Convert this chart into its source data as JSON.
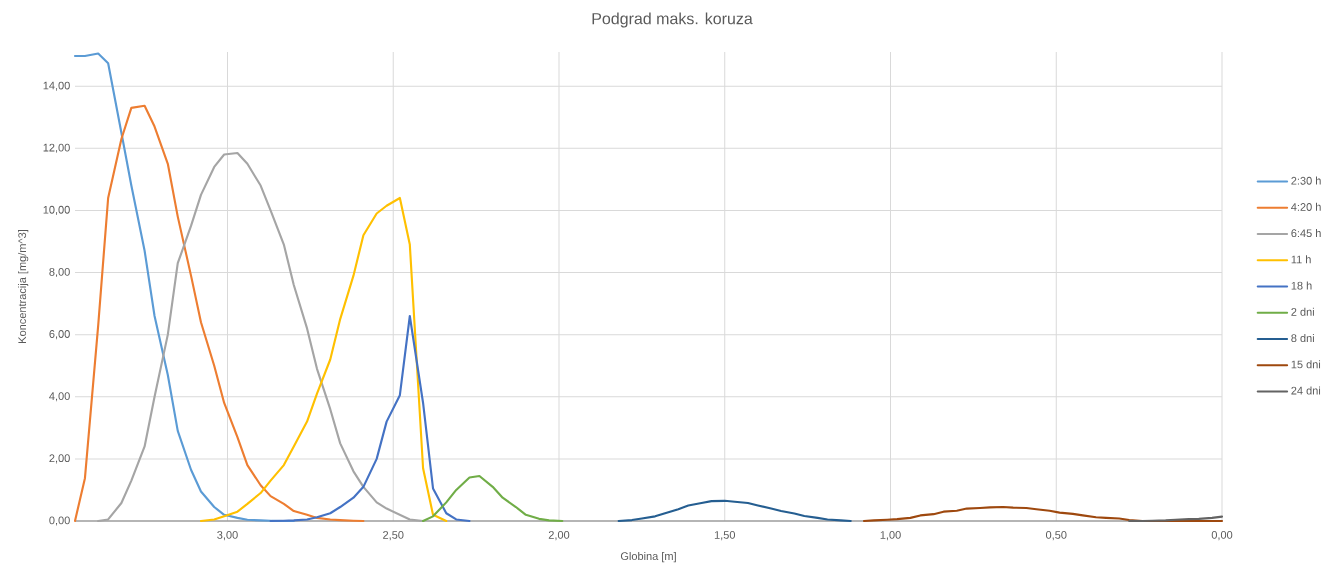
{
  "chart_data": {
    "type": "line",
    "title": "Podgrad maks. koruza",
    "xlabel": "Globina [m]",
    "ylabel": "Koncentracija [mg/m^3]",
    "xlim": [
      3.46,
      0
    ],
    "ylim": [
      0,
      15.1
    ],
    "xticks": [
      {
        "value": 3.0,
        "label": "3,00"
      },
      {
        "value": 2.5,
        "label": "2,50"
      },
      {
        "value": 2.0,
        "label": "2,00"
      },
      {
        "value": 1.5,
        "label": "1,50"
      },
      {
        "value": 1.0,
        "label": "1,00"
      },
      {
        "value": 0.5,
        "label": "0,50"
      },
      {
        "value": 0.0,
        "label": "0,00"
      }
    ],
    "yticks": [
      {
        "value": 0,
        "label": "0,00"
      },
      {
        "value": 2,
        "label": "2,00"
      },
      {
        "value": 4,
        "label": "4,00"
      },
      {
        "value": 6,
        "label": "6,00"
      },
      {
        "value": 8,
        "label": "8,00"
      },
      {
        "value": 10,
        "label": "10,00"
      },
      {
        "value": 12,
        "label": "12,00"
      },
      {
        "value": 14,
        "label": "14,00"
      }
    ],
    "grid": true,
    "legend": "right",
    "marker": "none",
    "line_style": "solid",
    "series": [
      {
        "name": "2:30 h",
        "color": "#5b9bd5",
        "x": [
          3.46,
          3.43,
          3.39,
          3.36,
          3.32,
          3.29,
          3.25,
          3.22,
          3.18,
          3.15,
          3.11,
          3.08,
          3.04,
          3.01,
          2.97,
          2.94,
          2.9,
          2.87,
          2.83,
          2.8
        ],
        "values": [
          14.97,
          14.97,
          15.05,
          14.74,
          12.5,
          10.8,
          8.7,
          6.6,
          4.7,
          2.9,
          1.65,
          0.95,
          0.45,
          0.2,
          0.1,
          0.04,
          0.02,
          0.01,
          0,
          0
        ]
      },
      {
        "name": "4:20 h",
        "color": "#ed7d31",
        "x": [
          3.46,
          3.43,
          3.39,
          3.36,
          3.32,
          3.29,
          3.25,
          3.22,
          3.18,
          3.15,
          3.11,
          3.08,
          3.04,
          3.01,
          2.97,
          2.94,
          2.9,
          2.87,
          2.83,
          2.8,
          2.76,
          2.73,
          2.69,
          2.66,
          2.62,
          2.59
        ],
        "values": [
          0,
          1.38,
          6.3,
          10.4,
          12.3,
          13.3,
          13.37,
          12.7,
          11.5,
          9.8,
          7.9,
          6.4,
          5.0,
          3.8,
          2.7,
          1.8,
          1.15,
          0.8,
          0.55,
          0.32,
          0.2,
          0.1,
          0.05,
          0.03,
          0.01,
          0
        ]
      },
      {
        "name": "6:45 h",
        "color": "#a5a5a5",
        "x": [
          3.39,
          3.36,
          3.32,
          3.29,
          3.25,
          3.22,
          3.18,
          3.15,
          3.11,
          3.08,
          3.04,
          3.01,
          2.97,
          2.94,
          2.9,
          2.87,
          2.83,
          2.8,
          2.76,
          2.73,
          2.69,
          2.66,
          2.62,
          2.59,
          2.55,
          2.52,
          2.48,
          2.45,
          2.41
        ],
        "values": [
          0,
          0.05,
          0.58,
          1.3,
          2.4,
          4.0,
          6.0,
          8.3,
          9.5,
          10.5,
          11.4,
          11.8,
          11.85,
          11.5,
          10.8,
          10.0,
          8.9,
          7.6,
          6.2,
          4.9,
          3.6,
          2.5,
          1.6,
          1.1,
          0.6,
          0.4,
          0.2,
          0.05,
          0
        ]
      },
      {
        "name": "11 h",
        "color": "#ffc000",
        "x": [
          3.08,
          3.04,
          3.01,
          2.97,
          2.94,
          2.9,
          2.87,
          2.83,
          2.8,
          2.76,
          2.73,
          2.69,
          2.66,
          2.62,
          2.59,
          2.55,
          2.52,
          2.48,
          2.45,
          2.41,
          2.38,
          2.34
        ],
        "values": [
          0,
          0.05,
          0.15,
          0.3,
          0.55,
          0.9,
          1.3,
          1.8,
          2.4,
          3.2,
          4.1,
          5.2,
          6.5,
          7.9,
          9.2,
          9.9,
          10.15,
          10.4,
          8.9,
          1.7,
          0.2,
          0
        ]
      },
      {
        "name": "18 h",
        "color": "#4472c4",
        "x": [
          2.87,
          2.83,
          2.8,
          2.76,
          2.73,
          2.69,
          2.66,
          2.62,
          2.59,
          2.55,
          2.52,
          2.48,
          2.45,
          2.41,
          2.38,
          2.34,
          2.31,
          2.27
        ],
        "values": [
          0,
          0.01,
          0.02,
          0.05,
          0.12,
          0.25,
          0.45,
          0.75,
          1.1,
          2.0,
          3.2,
          4.05,
          6.6,
          3.8,
          1.05,
          0.25,
          0.05,
          0
        ]
      },
      {
        "name": "2 dni",
        "color": "#70ad47",
        "x": [
          2.41,
          2.38,
          2.34,
          2.31,
          2.27,
          2.24,
          2.2,
          2.17,
          2.13,
          2.1,
          2.06,
          2.03,
          1.99
        ],
        "values": [
          0,
          0.15,
          0.6,
          1.0,
          1.4,
          1.45,
          1.1,
          0.75,
          0.45,
          0.2,
          0.07,
          0.02,
          0
        ]
      },
      {
        "name": "8 dni",
        "color": "#255e91",
        "x": [
          1.82,
          1.78,
          1.75,
          1.71,
          1.68,
          1.64,
          1.61,
          1.57,
          1.54,
          1.5,
          1.47,
          1.43,
          1.4,
          1.36,
          1.33,
          1.29,
          1.26,
          1.22,
          1.19,
          1.15,
          1.12
        ],
        "values": [
          0,
          0.03,
          0.08,
          0.15,
          0.25,
          0.38,
          0.5,
          0.58,
          0.64,
          0.65,
          0.62,
          0.58,
          0.5,
          0.4,
          0.32,
          0.24,
          0.16,
          0.1,
          0.05,
          0.02,
          0
        ]
      },
      {
        "name": "15 dni",
        "color": "#9e480e",
        "x": [
          1.08,
          1.05,
          1.01,
          0.98,
          0.94,
          0.91,
          0.87,
          0.84,
          0.8,
          0.77,
          0.73,
          0.7,
          0.66,
          0.63,
          0.59,
          0.56,
          0.52,
          0.49,
          0.45,
          0.42,
          0.38,
          0.35,
          0.31,
          0.28,
          0.24,
          0.21,
          0.17,
          0.14,
          0.1,
          0.07,
          0.03,
          0.0
        ],
        "values": [
          0,
          0.02,
          0.04,
          0.06,
          0.1,
          0.18,
          0.22,
          0.3,
          0.33,
          0.4,
          0.42,
          0.44,
          0.45,
          0.43,
          0.42,
          0.38,
          0.33,
          0.27,
          0.23,
          0.18,
          0.12,
          0.1,
          0.08,
          0.03,
          0,
          0,
          0,
          0,
          0,
          0,
          0,
          0
        ]
      },
      {
        "name": "24 dni",
        "color": "#636363",
        "x": [
          0.28,
          0.24,
          0.21,
          0.17,
          0.14,
          0.1,
          0.07,
          0.03,
          0.0
        ],
        "values": [
          0,
          0,
          0.01,
          0.02,
          0.04,
          0.06,
          0.07,
          0.1,
          0.14
        ]
      }
    ]
  }
}
